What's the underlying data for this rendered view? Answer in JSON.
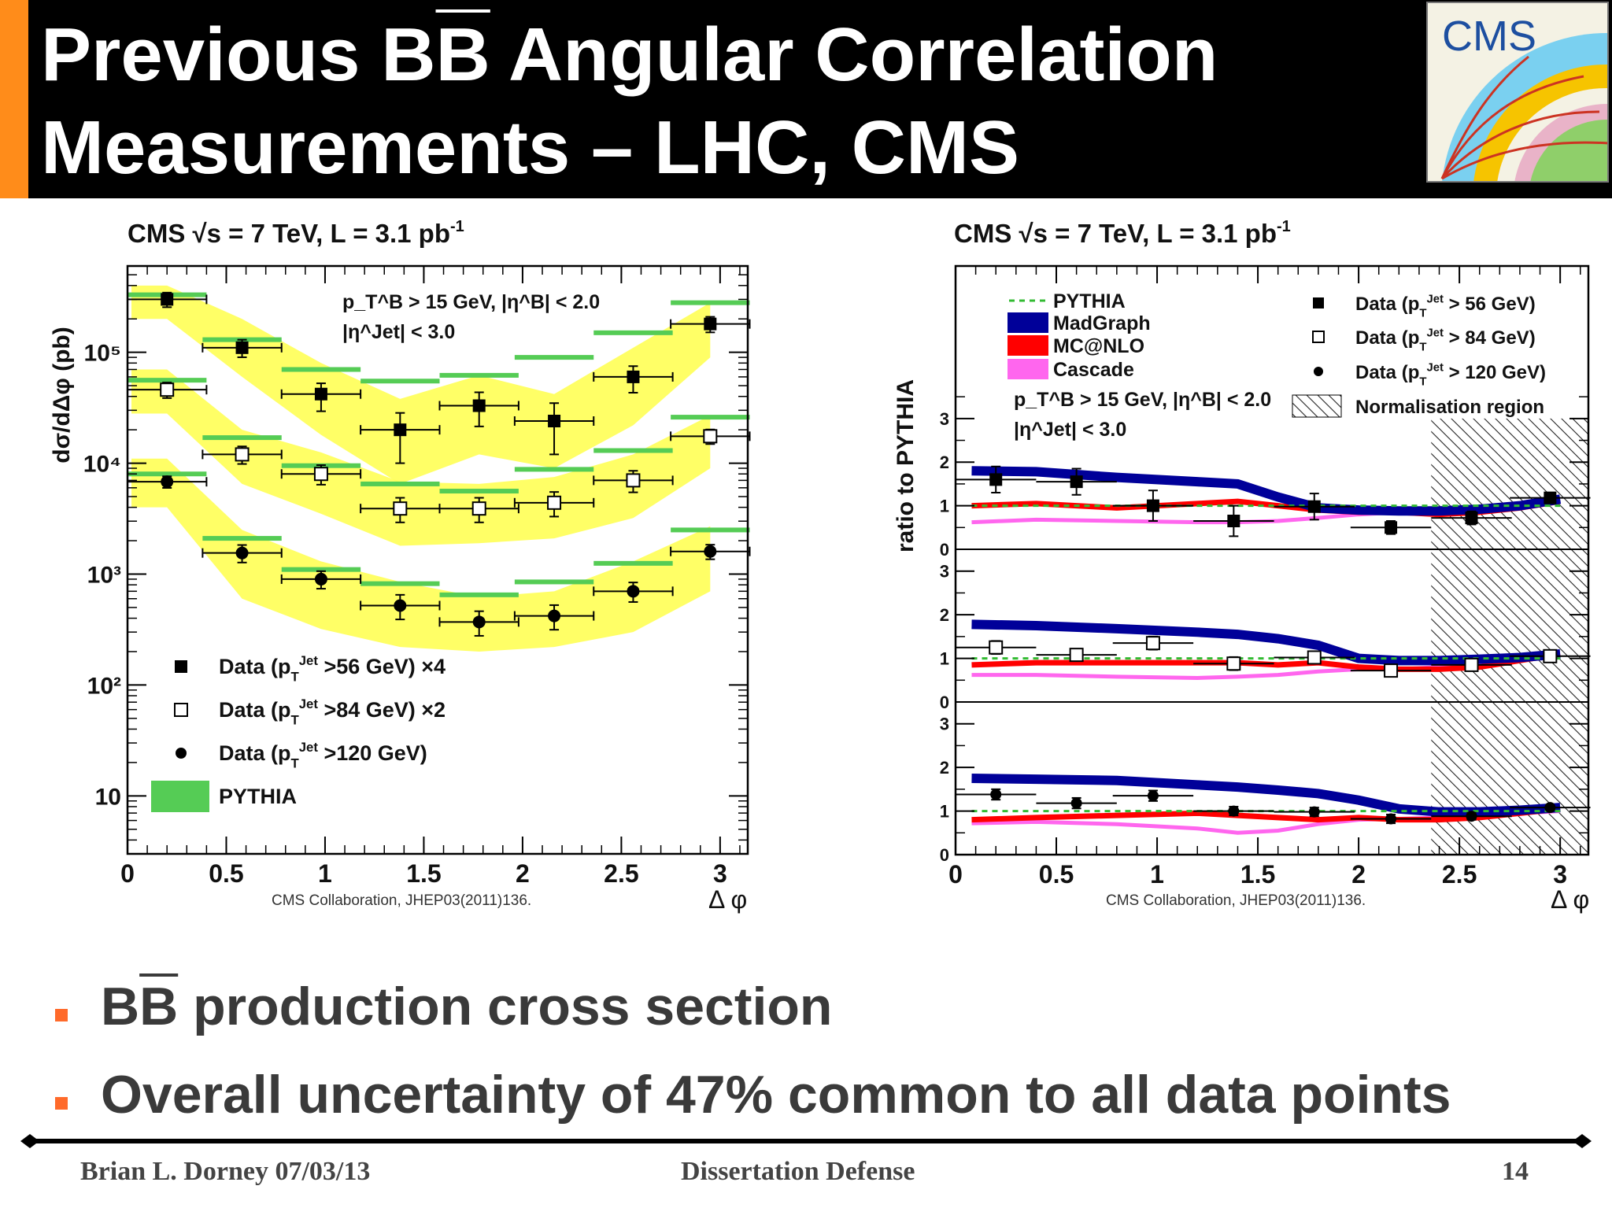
{
  "slide": {
    "title_line1_part1": "Previous B",
    "title_line1_bbar": "B",
    "title_line1_part2": " Angular Correlation",
    "title_line2": "Measurements – LHC, CMS",
    "logo_text": "CMS",
    "bullets": [
      {
        "bbar_b": "B",
        "bbar_bar": "B",
        "text": " production cross section"
      },
      {
        "text": "Overall uncertainty of 47% common to all data points"
      }
    ],
    "footer_left": "Brian L. Dorney 07/03/13",
    "footer_center": "Dissertation Defense",
    "footer_right": "14"
  },
  "colors": {
    "title_bg": "#000000",
    "accent_orange": "#ff8c1a",
    "bullet_marker": "#ff6a2a",
    "pythia_green": "#55cc55",
    "band_yellow": "#ffff55",
    "madgraph_blue": "#000099",
    "mcatnlo_red": "#ff0000",
    "cascade_pink": "#ff66ee",
    "pythia_dashed": "#33bb33"
  },
  "chart_data": [
    {
      "type": "scatter",
      "header": "CMS   √s = 7 TeV, L = 3.1 pb",
      "header_sup": "-1",
      "xlabel": "Δ φ",
      "ylabel": "dσ/dΔφ (pb)",
      "yscale": "log",
      "xlim": [
        0,
        3.14
      ],
      "ylim": [
        3,
        600000
      ],
      "xticks": [
        "0",
        "0.5",
        "1",
        "1.5",
        "2",
        "2.5",
        "3"
      ],
      "xtick_values": [
        0,
        0.5,
        1,
        1.5,
        2,
        2.5,
        3
      ],
      "yticks": [
        "10",
        "10²",
        "10³",
        "10⁴",
        "10⁵"
      ],
      "ytick_values": [
        10,
        100,
        1000,
        10000,
        100000
      ],
      "cuts_line1": "p_T^B > 15 GeV, |η^B| < 2.0",
      "cuts_line2": "|η^Jet| < 3.0",
      "citation": "CMS Collaboration, JHEP03(2011)136.",
      "legend": [
        {
          "label": "Data (p_T^Jet >56 GeV) ×4",
          "marker": "filled-square"
        },
        {
          "label": "Data (p_T^Jet >84 GeV) ×2",
          "marker": "open-square"
        },
        {
          "label": "Data (p_T^Jet >120 GeV)",
          "marker": "filled-circle"
        },
        {
          "label": "PYTHIA",
          "marker": "green-band"
        }
      ],
      "x": [
        0.2,
        0.58,
        0.98,
        1.38,
        1.78,
        2.16,
        2.56,
        2.95
      ],
      "x_halfwidth": [
        0.2,
        0.2,
        0.2,
        0.2,
        0.2,
        0.2,
        0.2,
        0.2
      ],
      "series": [
        {
          "name": "Data (p_T^Jet >56 GeV) ×4",
          "marker": "filled-square",
          "values": [
            300000,
            110000,
            42000,
            20000,
            33000,
            24000,
            60000,
            180000
          ],
          "err_up": [
            0.15,
            0.18,
            0.25,
            0.42,
            0.32,
            0.45,
            0.25,
            0.16
          ],
          "err_dn": [
            0.15,
            0.18,
            0.3,
            0.5,
            0.35,
            0.5,
            0.28,
            0.16
          ],
          "band_low": [
            200000,
            60000,
            18000,
            6500,
            12000,
            9000,
            22000,
            90000
          ],
          "band_high": [
            400000,
            200000,
            80000,
            38000,
            62000,
            42000,
            110000,
            280000
          ],
          "pythia": [
            330000,
            130000,
            70000,
            55000,
            62000,
            90000,
            150000,
            280000
          ]
        },
        {
          "name": "Data (p_T^Jet >84 GeV) ×2",
          "marker": "open-square",
          "values": [
            46000,
            12000,
            8000,
            3900,
            3900,
            4400,
            7000,
            17500
          ],
          "err_up": [
            0.16,
            0.18,
            0.2,
            0.25,
            0.25,
            0.25,
            0.22,
            0.15
          ],
          "err_dn": [
            0.16,
            0.18,
            0.2,
            0.25,
            0.25,
            0.25,
            0.22,
            0.15
          ],
          "band_low": [
            28000,
            6500,
            3500,
            1800,
            1900,
            2100,
            3200,
            9000
          ],
          "band_high": [
            70000,
            20000,
            12500,
            6800,
            6500,
            7500,
            12000,
            27000
          ],
          "pythia": [
            56000,
            17000,
            9500,
            6500,
            5600,
            8800,
            13000,
            26000
          ]
        },
        {
          "name": "Data (p_T^Jet >120 GeV)",
          "marker": "filled-circle",
          "values": [
            6800,
            1550,
            900,
            520,
            370,
            420,
            700,
            1600
          ],
          "err_up": [
            0.12,
            0.18,
            0.18,
            0.25,
            0.25,
            0.25,
            0.2,
            0.15
          ],
          "err_dn": [
            0.12,
            0.18,
            0.18,
            0.25,
            0.25,
            0.25,
            0.2,
            0.15
          ],
          "band_low": [
            4000,
            600,
            320,
            220,
            200,
            220,
            300,
            700
          ],
          "band_high": [
            11000,
            2500,
            1300,
            850,
            620,
            700,
            1300,
            2700
          ],
          "pythia": [
            8000,
            2100,
            1100,
            820,
            650,
            850,
            1250,
            2500
          ]
        }
      ]
    },
    {
      "type": "line",
      "header": "CMS   √s = 7 TeV, L = 3.1 pb",
      "header_sup": "-1",
      "xlabel": "Δ φ",
      "ylabel": "ratio to PYTHIA",
      "xlim": [
        0,
        3.14
      ],
      "xticks": [
        "0",
        "0.5",
        "1",
        "1.5",
        "2",
        "2.5",
        "3"
      ],
      "xtick_values": [
        0,
        0.5,
        1,
        1.5,
        2,
        2.5,
        3
      ],
      "panels": [
        {
          "ylim": [
            0,
            6.5
          ],
          "yticks": [
            "0",
            "1",
            "2",
            "3"
          ],
          "ytick_values": [
            0,
            1,
            2,
            3
          ]
        },
        {
          "ylim": [
            0,
            3.5
          ],
          "yticks": [
            "0",
            "1",
            "2",
            "3"
          ],
          "ytick_values": [
            0,
            1,
            2,
            3
          ]
        },
        {
          "ylim": [
            0,
            3.5
          ],
          "yticks": [
            "0",
            "1",
            "2",
            "3"
          ],
          "ytick_values": [
            0,
            1,
            2,
            3
          ]
        }
      ],
      "normalisation_region": [
        2.36,
        3.14
      ],
      "cuts_line1": "p_T^B > 15 GeV, |η^B| < 2.0",
      "cuts_line2": "|η^Jet| < 3.0",
      "citation": "CMS Collaboration, JHEP03(2011)136.",
      "legend_models": [
        "PYTHIA",
        "MadGraph",
        "MC@NLO",
        "Cascade"
      ],
      "legend_data": [
        "Data (p_T^Jet > 56 GeV)",
        "Data (p_T^Jet > 84 GeV)",
        "Data (p_T^Jet > 120 GeV)",
        "Normalisation region"
      ],
      "model_x": [
        0.08,
        0.4,
        0.8,
        1.2,
        1.4,
        1.6,
        1.8,
        2.0,
        2.2,
        2.4,
        2.6,
        2.8,
        3.0
      ],
      "panel_series": [
        {
          "data_name": "Data (p_T^Jet > 56 GeV)",
          "marker": "filled-square",
          "x": [
            0.2,
            0.6,
            0.98,
            1.38,
            1.78,
            2.16,
            2.56,
            2.95
          ],
          "values": [
            1.6,
            1.55,
            1.0,
            0.65,
            0.98,
            0.5,
            0.72,
            1.18
          ],
          "err": [
            0.3,
            0.3,
            0.35,
            0.35,
            0.3,
            0.15,
            0.15,
            0.1
          ],
          "madgraph": [
            1.8,
            1.78,
            1.65,
            1.55,
            1.5,
            1.2,
            0.95,
            0.9,
            0.88,
            0.88,
            0.92,
            1.0,
            1.15
          ],
          "mcatnlo": [
            1.0,
            1.05,
            0.95,
            1.05,
            1.1,
            1.0,
            0.9,
            0.85,
            0.85,
            0.8,
            0.85,
            0.95,
            1.1
          ],
          "cascade": [
            0.62,
            0.68,
            0.65,
            0.62,
            0.62,
            0.65,
            0.72,
            0.8,
            0.85,
            0.88,
            0.9,
            1.0,
            1.12
          ]
        },
        {
          "data_name": "Data (p_T^Jet > 84 GeV)",
          "marker": "open-square",
          "x": [
            0.2,
            0.6,
            0.98,
            1.38,
            1.78,
            2.16,
            2.56,
            2.95
          ],
          "values": [
            1.25,
            1.08,
            1.35,
            0.88,
            1.02,
            0.72,
            0.85,
            1.05
          ],
          "err": [
            0.15,
            0.12,
            0.15,
            0.15,
            0.12,
            0.1,
            0.1,
            0.05
          ],
          "madgraph": [
            1.78,
            1.75,
            1.68,
            1.6,
            1.55,
            1.45,
            1.3,
            1.0,
            0.95,
            0.95,
            0.98,
            1.02,
            1.1
          ],
          "mcatnlo": [
            0.85,
            0.9,
            0.9,
            0.9,
            0.9,
            0.85,
            0.9,
            0.8,
            0.75,
            0.75,
            0.8,
            0.95,
            1.1
          ],
          "cascade": [
            0.62,
            0.62,
            0.58,
            0.55,
            0.58,
            0.62,
            0.7,
            0.75,
            0.75,
            0.8,
            0.85,
            0.95,
            1.05
          ]
        },
        {
          "data_name": "Data (p_T^Jet > 120 GeV)",
          "marker": "filled-circle",
          "x": [
            0.2,
            0.6,
            0.98,
            1.38,
            1.78,
            2.16,
            2.56,
            2.95
          ],
          "values": [
            1.38,
            1.18,
            1.35,
            1.0,
            0.98,
            0.82,
            0.88,
            1.08
          ],
          "err": [
            0.12,
            0.12,
            0.12,
            0.1,
            0.1,
            0.1,
            0.08,
            0.05
          ],
          "madgraph": [
            1.75,
            1.73,
            1.7,
            1.6,
            1.55,
            1.48,
            1.4,
            1.25,
            1.05,
            0.98,
            0.98,
            1.02,
            1.08
          ],
          "mcatnlo": [
            0.8,
            0.85,
            0.9,
            0.95,
            0.9,
            0.85,
            0.8,
            0.85,
            0.8,
            0.8,
            0.85,
            0.95,
            1.05
          ],
          "cascade": [
            0.72,
            0.75,
            0.7,
            0.6,
            0.5,
            0.55,
            0.7,
            0.8,
            0.82,
            0.85,
            0.9,
            0.95,
            1.0
          ]
        }
      ]
    }
  ]
}
